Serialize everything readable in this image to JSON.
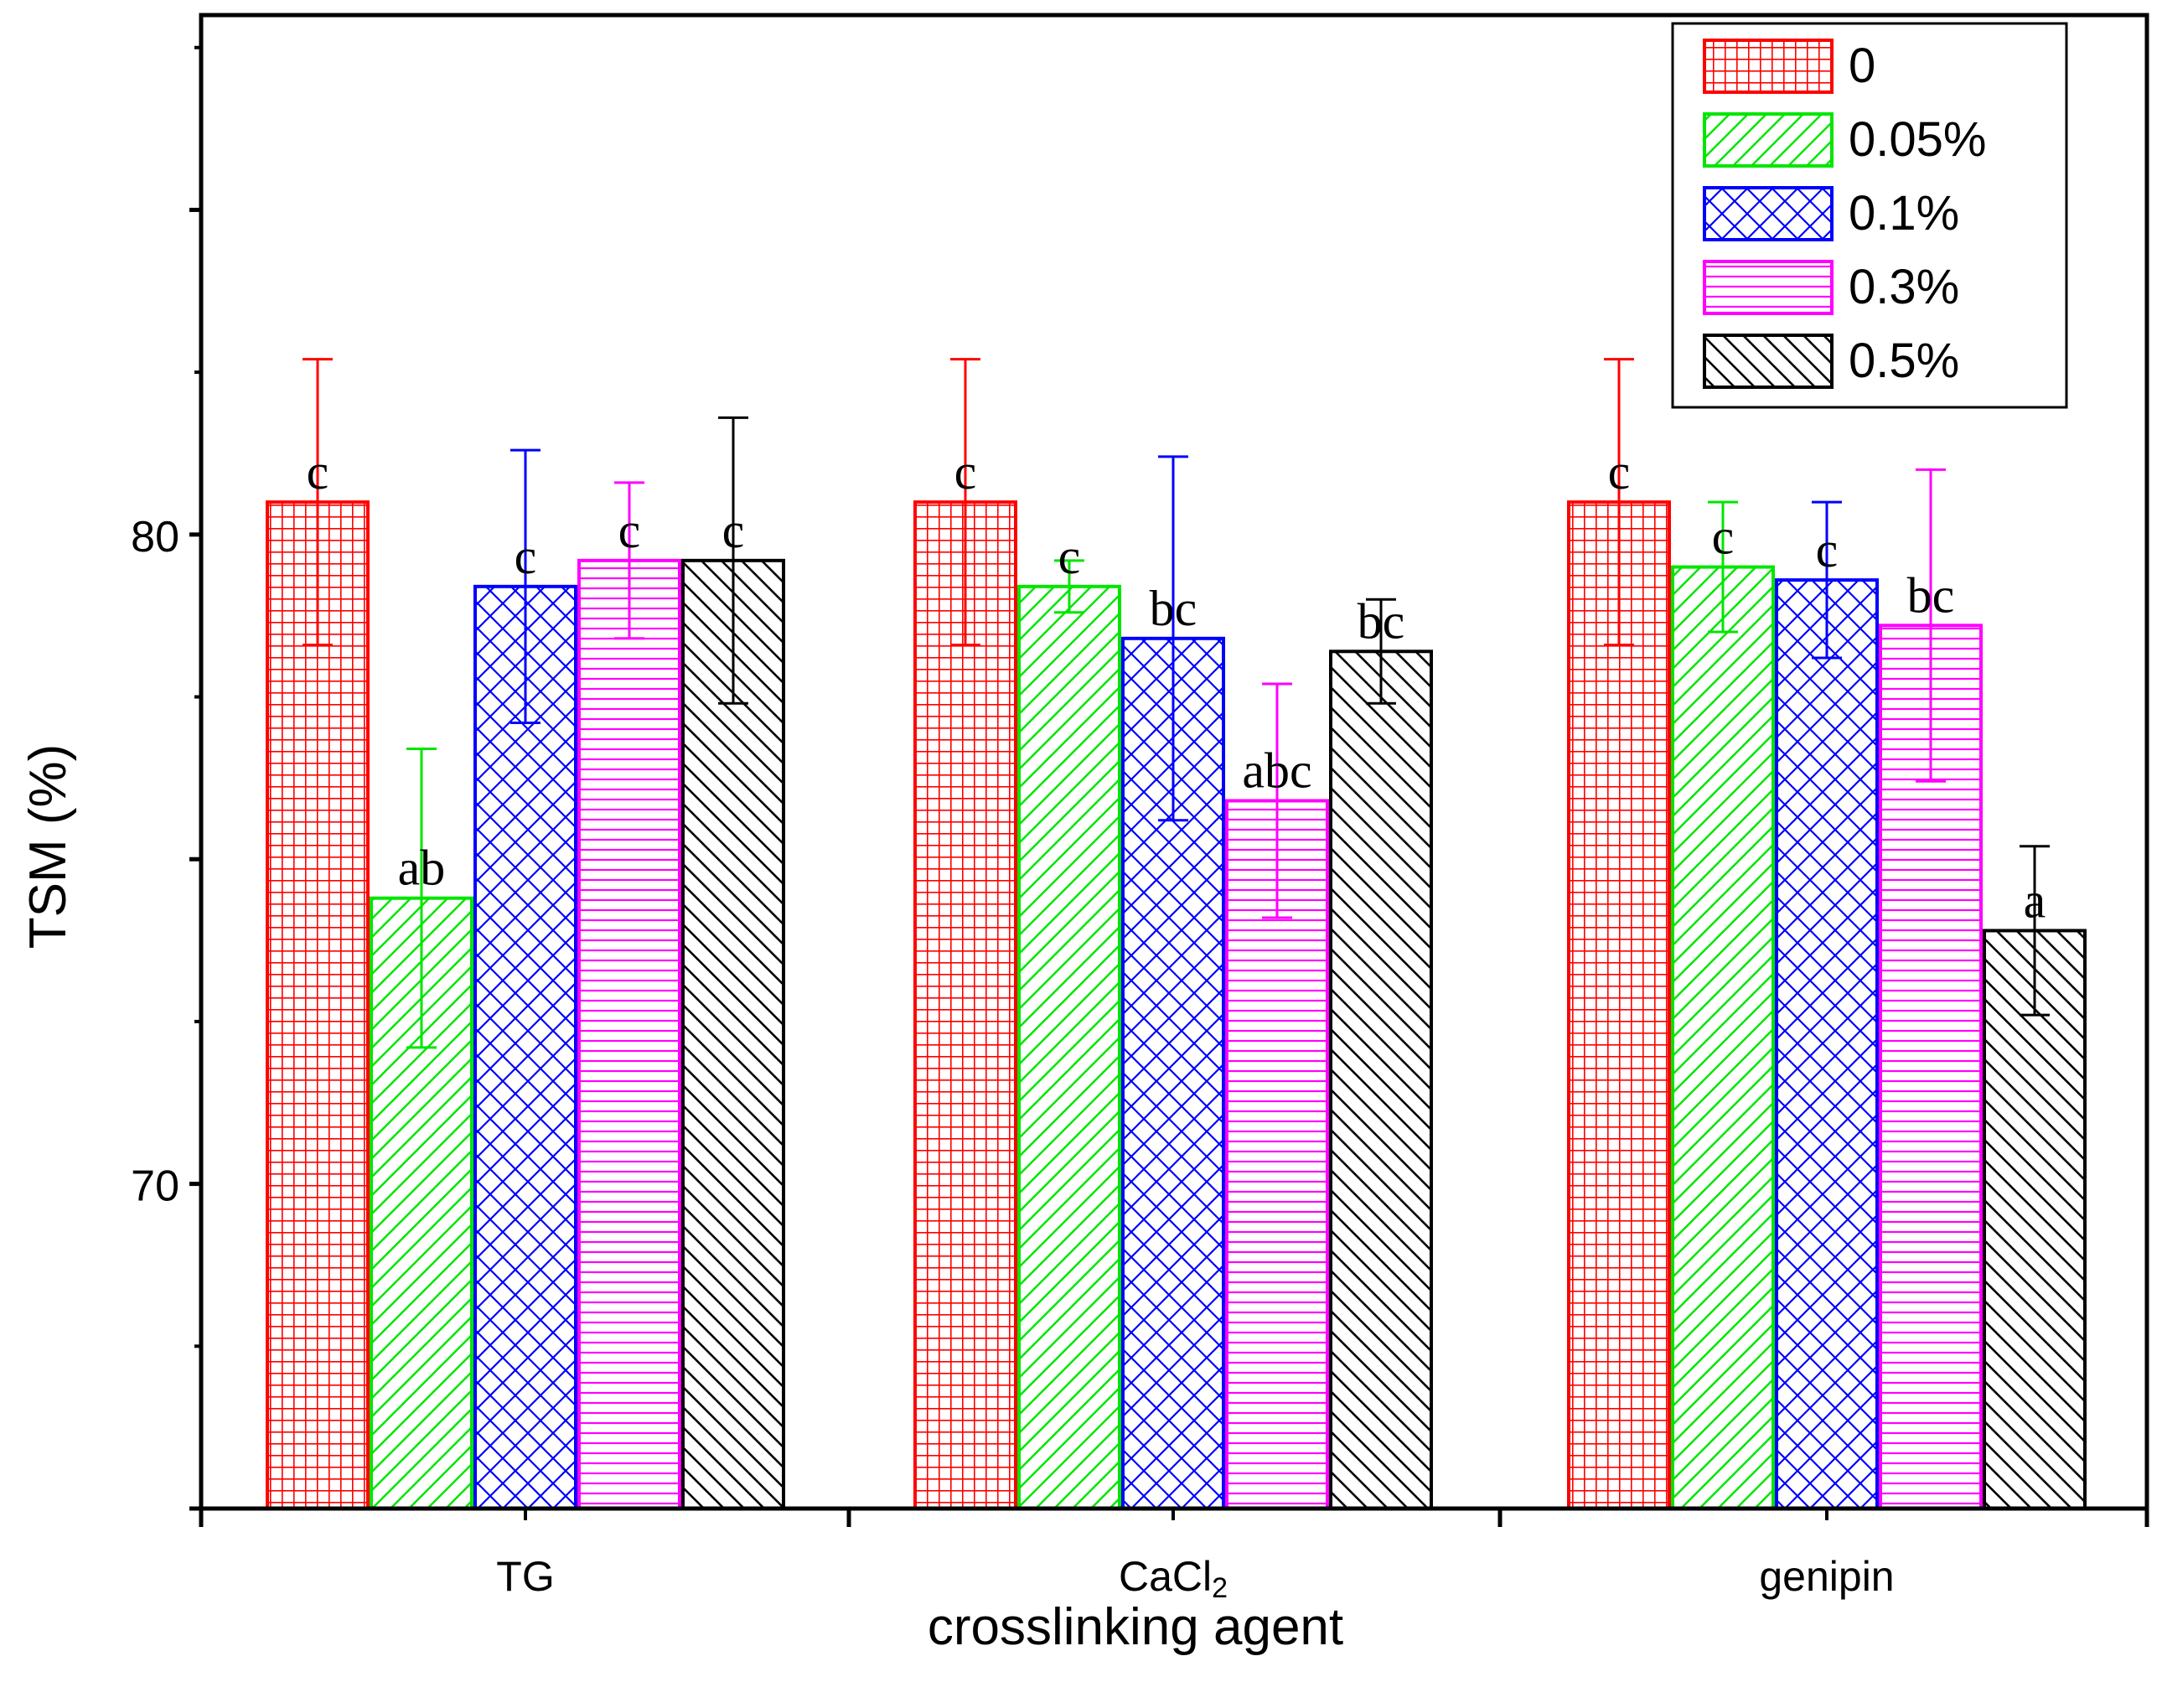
{
  "chart_data": {
    "type": "bar",
    "title": "",
    "xlabel": "crosslinking agent",
    "ylabel": "TSM (%)",
    "ylim": [
      65,
      88
    ],
    "yticks": [
      70,
      80
    ],
    "categories": [
      {
        "text": "TG",
        "sub": ""
      },
      {
        "text": "CaCl",
        "sub": "2"
      },
      {
        "text": "genipin",
        "sub": ""
      }
    ],
    "series": [
      {
        "name": "0",
        "color": "#ff0000",
        "pattern": "grid",
        "values": [
          80.5,
          80.5,
          80.5
        ],
        "errors": [
          2.2,
          2.2,
          2.2
        ],
        "letters": [
          "c",
          "c",
          "c"
        ]
      },
      {
        "name": "0.05%",
        "color": "#00e600",
        "pattern": "diag-up",
        "values": [
          74.4,
          79.2,
          79.5
        ],
        "errors": [
          2.3,
          0.4,
          1.0
        ],
        "letters": [
          "ab",
          "c",
          "c"
        ]
      },
      {
        "name": "0.1%",
        "color": "#0000ff",
        "pattern": "crosshatch",
        "values": [
          79.2,
          78.4,
          79.3
        ],
        "errors": [
          2.1,
          2.8,
          1.2
        ],
        "letters": [
          "c",
          "bc",
          "c"
        ]
      },
      {
        "name": "0.3%",
        "color": "#ff00ff",
        "pattern": "horizontal",
        "values": [
          79.6,
          75.9,
          78.6
        ],
        "errors": [
          1.2,
          1.8,
          2.4
        ],
        "letters": [
          "c",
          "abc",
          "bc"
        ]
      },
      {
        "name": "0.5%",
        "color": "#000000",
        "pattern": "diag-down",
        "values": [
          79.6,
          78.2,
          73.9
        ],
        "errors": [
          2.2,
          0.8,
          1.3
        ],
        "letters": [
          "c",
          "bc",
          "a"
        ]
      }
    ],
    "legend": "top-right",
    "grid": false
  }
}
